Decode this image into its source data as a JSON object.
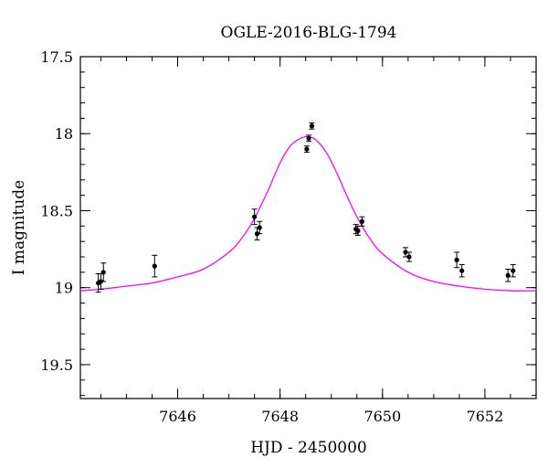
{
  "chart_data": {
    "type": "scatter",
    "title": "OGLE-2016-BLG-1794",
    "xlabel": "HJD - 2450000",
    "ylabel": "I magnitude",
    "xlim": [
      7644.1,
      7653.0
    ],
    "ylim": [
      19.72,
      17.5
    ],
    "y_inverted": true,
    "x_ticks": [
      7646,
      7648,
      7650,
      7652
    ],
    "x_tick_labels": [
      "7646",
      "7648",
      "7650",
      "7652"
    ],
    "y_ticks": [
      17.5,
      18.0,
      18.5,
      19.0,
      19.5
    ],
    "y_tick_labels": [
      "17.5",
      "18",
      "18.5",
      "19",
      "19.5"
    ],
    "x_minor_step": 0.5,
    "y_minor_step": 0.1,
    "grid": false,
    "legend": "none",
    "series": [
      {
        "kind": "points_with_errorbars",
        "color": "#000000",
        "points": [
          {
            "x": 7644.45,
            "y": 18.97,
            "err": 0.06
          },
          {
            "x": 7644.5,
            "y": 18.96,
            "err": 0.05
          },
          {
            "x": 7644.55,
            "y": 18.9,
            "err": 0.06
          },
          {
            "x": 7645.55,
            "y": 18.86,
            "err": 0.07
          },
          {
            "x": 7647.5,
            "y": 18.54,
            "err": 0.05
          },
          {
            "x": 7647.55,
            "y": 18.65,
            "err": 0.04
          },
          {
            "x": 7647.6,
            "y": 18.61,
            "err": 0.04
          },
          {
            "x": 7648.52,
            "y": 18.1,
            "err": 0.02
          },
          {
            "x": 7648.56,
            "y": 18.03,
            "err": 0.02
          },
          {
            "x": 7648.62,
            "y": 17.95,
            "err": 0.02
          },
          {
            "x": 7649.48,
            "y": 18.62,
            "err": 0.03
          },
          {
            "x": 7649.52,
            "y": 18.63,
            "err": 0.03
          },
          {
            "x": 7649.6,
            "y": 18.57,
            "err": 0.03
          },
          {
            "x": 7650.45,
            "y": 18.77,
            "err": 0.03
          },
          {
            "x": 7650.52,
            "y": 18.8,
            "err": 0.03
          },
          {
            "x": 7651.45,
            "y": 18.82,
            "err": 0.05
          },
          {
            "x": 7651.55,
            "y": 18.89,
            "err": 0.04
          },
          {
            "x": 7652.45,
            "y": 18.92,
            "err": 0.04
          },
          {
            "x": 7652.55,
            "y": 18.89,
            "err": 0.04
          }
        ]
      },
      {
        "kind": "model_curve",
        "color": "#ff00ff",
        "x": [
          7644.1,
          7644.5,
          7645.0,
          7645.5,
          7646.0,
          7646.5,
          7647.0,
          7647.25,
          7647.5,
          7647.75,
          7648.0,
          7648.2,
          7648.4,
          7648.55,
          7648.7,
          7648.9,
          7649.1,
          7649.3,
          7649.5,
          7649.75,
          7650.0,
          7650.5,
          7651.0,
          7651.5,
          7652.0,
          7652.5,
          7653.0
        ],
        "y": [
          19.02,
          19.01,
          18.99,
          18.97,
          18.93,
          18.88,
          18.77,
          18.68,
          18.55,
          18.38,
          18.19,
          18.08,
          18.03,
          18.02,
          18.04,
          18.12,
          18.25,
          18.4,
          18.54,
          18.68,
          18.78,
          18.9,
          18.96,
          18.99,
          19.01,
          19.02,
          19.02
        ]
      }
    ]
  }
}
